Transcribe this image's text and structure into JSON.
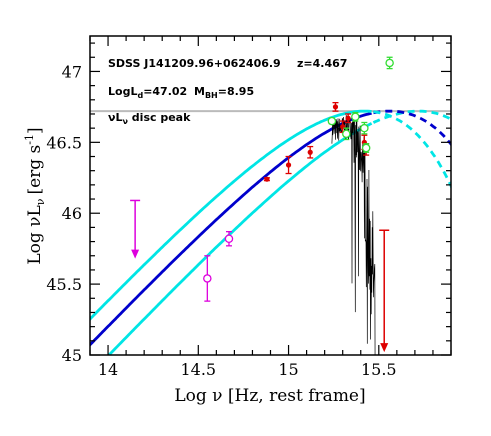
{
  "chart_data": {
    "type": "scatter",
    "xlabel": "Log ν [Hz, rest frame]",
    "ylabel": "Log νL",
    "ylabel_sub": "ν",
    "ylabel_unit": "[erg s",
    "ylabel_unit_sup": "-1",
    "ylabel_unit_end": "]",
    "xlim": [
      13.9,
      15.9
    ],
    "ylim": [
      45.0,
      47.25
    ],
    "xticks": [
      14,
      14.5,
      15,
      15.5
    ],
    "xtick_labels": [
      "14",
      "14.5",
      "15",
      "15.5"
    ],
    "yticks": [
      45,
      45.5,
      46,
      46.5,
      47
    ],
    "ytick_labels": [
      "45",
      "45.5",
      "46",
      "46.5",
      "47"
    ],
    "grid": false,
    "annotations": {
      "source": "SDSS J141209.96+062406.9",
      "redshift": "z=4.467",
      "disc_lum": "LogL",
      "disc_lum_sub": "d",
      "disc_lum_val": "=47.02",
      "bh_mass": "M",
      "bh_mass_sub": "BH",
      "bh_mass_val": "=8.95",
      "peak_label": "νL",
      "peak_label_sub": "ν",
      "peak_label_end": " disc peak"
    },
    "disc_peak_level": 46.72,
    "disc_models": [
      {
        "color": "#00e5e5",
        "logM_offset": 0.0,
        "logL_peak": 46.72,
        "x_peak": 15.72
      },
      {
        "color": "#0000cc",
        "logL_peak": 46.72,
        "x_peak": 15.56
      },
      {
        "color": "#00e5e5",
        "logL_peak": 46.72,
        "x_peak": 15.42
      }
    ],
    "series": [
      {
        "marker": "filled-circle",
        "color": "#dd0000",
        "points": [
          {
            "x": 14.88,
            "y": 46.24,
            "err": 0.01
          },
          {
            "x": 15.0,
            "y": 46.34,
            "err": 0.06
          },
          {
            "x": 15.12,
            "y": 46.43,
            "err": 0.04
          },
          {
            "x": 15.26,
            "y": 46.75,
            "err": 0.03
          },
          {
            "x": 15.3,
            "y": 46.61,
            "err": 0.04
          },
          {
            "x": 15.33,
            "y": 46.67,
            "err": 0.03
          },
          {
            "x": 15.42,
            "y": 46.5,
            "err": 0.05
          },
          {
            "x": 15.43,
            "y": 46.45,
            "err": 0.04
          }
        ]
      },
      {
        "marker": "open-circle",
        "color": "#33dd33",
        "points": [
          {
            "x": 15.24,
            "y": 46.65,
            "err": 0.02
          },
          {
            "x": 15.32,
            "y": 46.56,
            "err": 0.04
          },
          {
            "x": 15.37,
            "y": 46.68,
            "err": 0.03
          },
          {
            "x": 15.42,
            "y": 46.6,
            "err": 0.04
          },
          {
            "x": 15.43,
            "y": 46.46,
            "err": 0.03
          },
          {
            "x": 15.56,
            "y": 47.06,
            "err": 0.04
          }
        ]
      },
      {
        "marker": "open-circle",
        "color": "#dd00dd",
        "points": [
          {
            "x": 14.55,
            "y": 45.54,
            "err": 0.16
          },
          {
            "x": 14.67,
            "y": 45.82,
            "err": 0.05
          }
        ]
      }
    ],
    "upper_limits": [
      {
        "x": 14.15,
        "y": 46.09,
        "to": 45.68,
        "color": "#dd00dd"
      },
      {
        "x": 15.53,
        "y": 45.88,
        "to": 45.02,
        "color": "#dd0000"
      }
    ]
  }
}
